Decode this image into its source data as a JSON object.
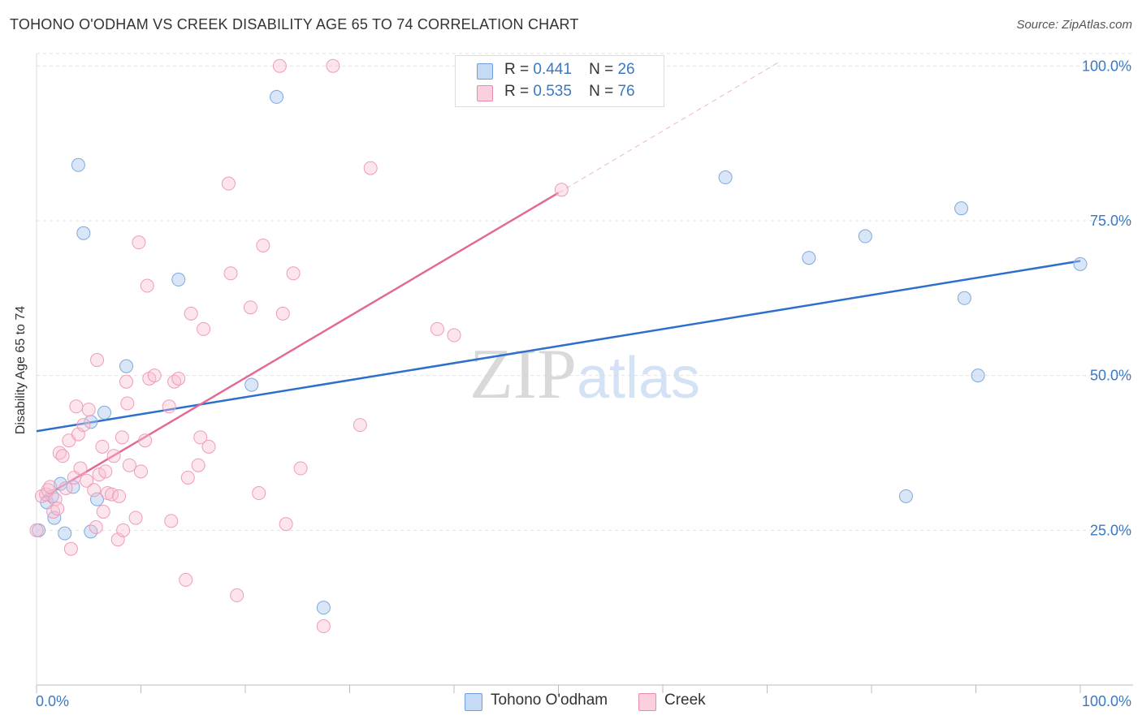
{
  "chart_data": {
    "type": "scatter",
    "title": "TOHONO O'ODHAM VS CREEK DISABILITY AGE 65 TO 74 CORRELATION CHART",
    "source": "Source: ZipAtlas.com",
    "ylabel": "Disability Age 65 to 74",
    "xlabel": "",
    "xlim": [
      0,
      100
    ],
    "ylim": [
      0,
      102
    ],
    "x_tick_labels": [
      "0.0%",
      "100.0%"
    ],
    "y_ticks": [
      25,
      50,
      75,
      100
    ],
    "y_tick_labels": [
      "25.0%",
      "50.0%",
      "75.0%",
      "100.0%"
    ],
    "grid": true,
    "watermark": "ZIPatlas",
    "legend": {
      "r_label": "R =",
      "n_label": "N =",
      "entries": [
        {
          "series": "Tohono O'odham",
          "r": "0.441",
          "n": "26"
        },
        {
          "series": "Creek",
          "r": "0.535",
          "n": "76"
        }
      ]
    },
    "series": [
      {
        "name": "Tohono O'odham",
        "color": "#8ab4e8",
        "line_color": "#2f6fcc",
        "trend": {
          "x0": 0,
          "y0": 41,
          "x1": 100,
          "y1": 68.5,
          "dash_x1": 100,
          "dash_y1": 68.5
        },
        "points": [
          [
            0.2,
            25
          ],
          [
            1,
            29.5
          ],
          [
            1.5,
            30.5
          ],
          [
            1.7,
            27
          ],
          [
            2.3,
            32.5
          ],
          [
            2.7,
            24.5
          ],
          [
            3.5,
            32
          ],
          [
            4,
            84
          ],
          [
            4.5,
            73
          ],
          [
            5.2,
            42.5
          ],
          [
            5.2,
            24.8
          ],
          [
            5.8,
            30
          ],
          [
            6.5,
            44
          ],
          [
            8.6,
            51.5
          ],
          [
            13.6,
            65.5
          ],
          [
            20.6,
            48.5
          ],
          [
            23,
            95
          ],
          [
            27.5,
            12.5
          ],
          [
            66,
            82
          ],
          [
            74,
            69
          ],
          [
            79.4,
            72.5
          ],
          [
            83.3,
            30.5
          ],
          [
            88.6,
            77
          ],
          [
            88.9,
            62.5
          ],
          [
            90.2,
            50
          ],
          [
            100,
            68
          ]
        ]
      },
      {
        "name": "Creek",
        "color": "#f4a8c0",
        "line_color": "#e36a96",
        "trend": {
          "x0": 0.5,
          "y0": 30.2,
          "x1": 50,
          "y1": 79.5,
          "dash_x1": 71,
          "dash_y1": 100.5
        },
        "points": [
          [
            0,
            25
          ],
          [
            0.5,
            30.5
          ],
          [
            0.9,
            30.8
          ],
          [
            1.1,
            31.5
          ],
          [
            1.3,
            32
          ],
          [
            1.6,
            28
          ],
          [
            1.8,
            30
          ],
          [
            2,
            28.5
          ],
          [
            2.2,
            37.5
          ],
          [
            2.5,
            37
          ],
          [
            2.8,
            31.8
          ],
          [
            3.1,
            39.5
          ],
          [
            3.3,
            22
          ],
          [
            3.6,
            33.5
          ],
          [
            3.8,
            45
          ],
          [
            4,
            40.5
          ],
          [
            4.2,
            35
          ],
          [
            4.5,
            42
          ],
          [
            4.8,
            33
          ],
          [
            5,
            44.5
          ],
          [
            5.5,
            31.5
          ],
          [
            5.7,
            25.5
          ],
          [
            5.8,
            52.5
          ],
          [
            6,
            34
          ],
          [
            6.3,
            38.5
          ],
          [
            6.4,
            28
          ],
          [
            6.6,
            34.5
          ],
          [
            6.8,
            31
          ],
          [
            7.2,
            30.8
          ],
          [
            7.4,
            37
          ],
          [
            7.8,
            23.5
          ],
          [
            7.9,
            30.5
          ],
          [
            8.2,
            40
          ],
          [
            8.3,
            25
          ],
          [
            8.6,
            49
          ],
          [
            8.7,
            45.5
          ],
          [
            8.9,
            35.5
          ],
          [
            9.5,
            27
          ],
          [
            9.8,
            71.5
          ],
          [
            10,
            34.5
          ],
          [
            10.4,
            39.5
          ],
          [
            10.6,
            64.5
          ],
          [
            10.8,
            49.5
          ],
          [
            11.3,
            50
          ],
          [
            12.7,
            45
          ],
          [
            12.9,
            26.5
          ],
          [
            13.2,
            49
          ],
          [
            13.6,
            49.5
          ],
          [
            14.3,
            17
          ],
          [
            14.5,
            33.5
          ],
          [
            14.8,
            60
          ],
          [
            15.5,
            35.5
          ],
          [
            15.7,
            40
          ],
          [
            16,
            57.5
          ],
          [
            16.5,
            38.5
          ],
          [
            18.4,
            81
          ],
          [
            18.6,
            66.5
          ],
          [
            19.2,
            14.5
          ],
          [
            20.5,
            61
          ],
          [
            21.3,
            31
          ],
          [
            21.7,
            71
          ],
          [
            23.3,
            100
          ],
          [
            23.6,
            60
          ],
          [
            23.9,
            26
          ],
          [
            24.6,
            66.5
          ],
          [
            25.3,
            35
          ],
          [
            27.5,
            9.5
          ],
          [
            28.4,
            100
          ],
          [
            31,
            42
          ],
          [
            32,
            83.5
          ],
          [
            38.4,
            57.5
          ],
          [
            40,
            56.5
          ],
          [
            50.3,
            80
          ]
        ]
      }
    ]
  }
}
